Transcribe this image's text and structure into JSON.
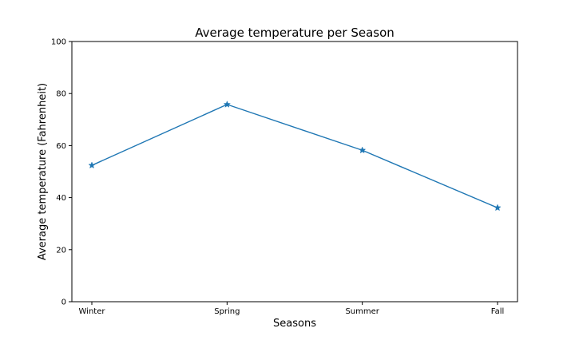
{
  "chart_data": {
    "type": "line",
    "title": "Average temperature per Season",
    "xlabel": "Seasons",
    "ylabel": "Average temperature (Fahrenheit)",
    "categories": [
      "Winter",
      "Spring",
      "Summer",
      "Fall"
    ],
    "series": [
      {
        "values": [
          52.4,
          75.8,
          58.2,
          36.1
        ],
        "color": "#1f77b4",
        "marker": "star"
      }
    ],
    "ylim": [
      0,
      100
    ],
    "yticks": [
      0,
      20,
      40,
      60,
      80,
      100
    ],
    "grid": false,
    "legend": "none"
  }
}
